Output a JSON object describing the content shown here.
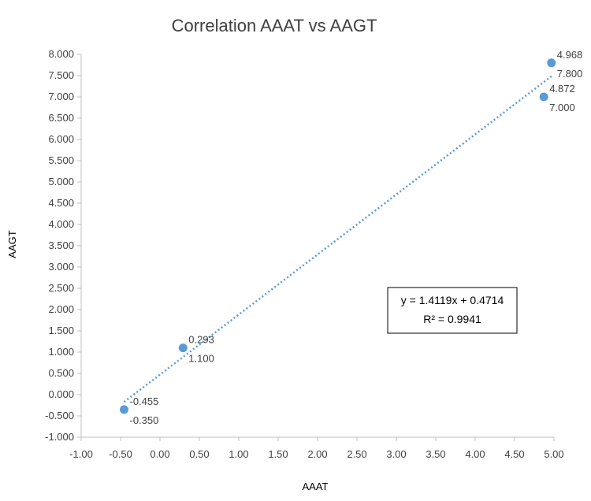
{
  "chart_data": {
    "type": "scatter",
    "title": "Correlation AAAT vs AAGT",
    "xlabel": "AAAT",
    "ylabel": "AAGT",
    "xlim": [
      -1.0,
      5.0
    ],
    "ylim": [
      -1.0,
      8.0
    ],
    "x_ticks": [
      -1.0,
      -0.5,
      0.0,
      0.5,
      1.0,
      1.5,
      2.0,
      2.5,
      3.0,
      3.5,
      4.0,
      4.5,
      5.0
    ],
    "x_tick_labels": [
      "-1.00",
      "-0.50",
      "0.00",
      "0.50",
      "1.00",
      "1.50",
      "2.00",
      "2.50",
      "3.00",
      "3.50",
      "4.00",
      "4.50",
      "5.00"
    ],
    "y_ticks": [
      -1.0,
      -0.5,
      0.0,
      0.5,
      1.0,
      1.5,
      2.0,
      2.5,
      3.0,
      3.5,
      4.0,
      4.5,
      5.0,
      5.5,
      6.0,
      6.5,
      7.0,
      7.5,
      8.0
    ],
    "y_tick_labels": [
      "-1.000",
      "-0.500",
      "0.000",
      "0.500",
      "1.000",
      "1.500",
      "2.000",
      "2.500",
      "3.000",
      "3.500",
      "4.000",
      "4.500",
      "5.000",
      "5.500",
      "6.000",
      "6.500",
      "7.000",
      "7.500",
      "8.000"
    ],
    "grid": false,
    "points": [
      {
        "x": -0.455,
        "y": -0.35,
        "label_x": "-0.455",
        "label_y": "-0.350"
      },
      {
        "x": 0.293,
        "y": 1.1,
        "label_x": "0.293",
        "label_y": "1.100"
      },
      {
        "x": 4.872,
        "y": 7.0,
        "label_x": "4.872",
        "label_y": "7.000"
      },
      {
        "x": 4.968,
        "y": 7.8,
        "label_x": "4.968",
        "label_y": "7.800"
      }
    ],
    "trendline": {
      "type": "linear",
      "slope": 1.4119,
      "intercept": 0.4714,
      "x_range": [
        -0.455,
        4.968
      ],
      "equation": "y = 1.4119x + 0.4714",
      "r2_label": "R² = 0.9941"
    },
    "colors": {
      "marker": "#5b9bd5",
      "trendline": "#5b9bd5",
      "text": "#404040",
      "axis": "#bfbfbf"
    }
  }
}
